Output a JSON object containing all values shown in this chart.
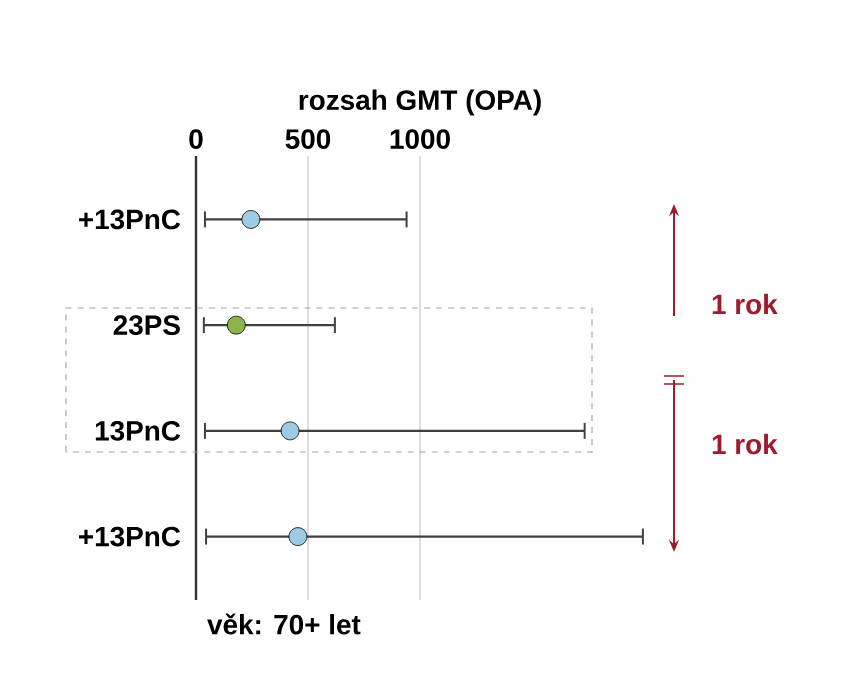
{
  "chart_data": {
    "type": "scatter",
    "orientation": "horizontal",
    "xlabel": "rozsah GMT (OPA)",
    "categories": [
      "+13PnC",
      "23PS",
      "13PnC",
      "+13PnC"
    ],
    "values": [
      245,
      180,
      420,
      455
    ],
    "errors": [
      [
        40,
        940
      ],
      [
        35,
        620
      ],
      [
        40,
        1735
      ],
      [
        45,
        1995
      ]
    ],
    "colors": [
      "#9ccbe3",
      "#8db44a",
      "#9ccbe3",
      "#9ccbe3"
    ],
    "xlim": [
      0,
      2000
    ],
    "xticks": [
      0,
      500,
      1000
    ],
    "grid": "x",
    "annotations": [
      "1 rok",
      "1 rok",
      "věk: 70+ let"
    ]
  }
}
